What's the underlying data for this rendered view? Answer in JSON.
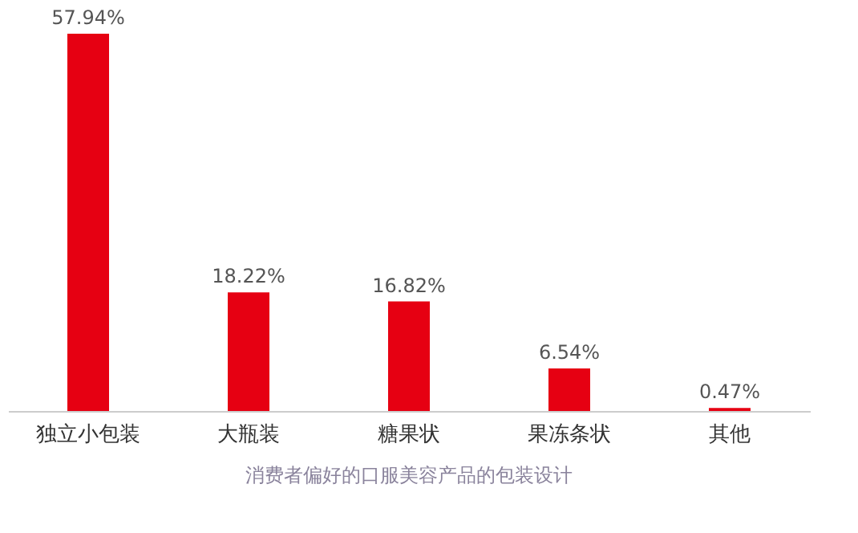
{
  "chart_data": {
    "type": "bar",
    "title": "消费者偏好的口服美容产品的包装设计",
    "categories": [
      "独立小包装",
      "大瓶装",
      "糖果状",
      "果冻条状",
      "其他"
    ],
    "values": [
      57.94,
      18.22,
      16.82,
      6.54,
      0.47
    ],
    "value_labels": [
      "57.94%",
      "18.22%",
      "16.82%",
      "6.54%",
      "0.47%"
    ],
    "color": "#e60012",
    "grid": false
  }
}
